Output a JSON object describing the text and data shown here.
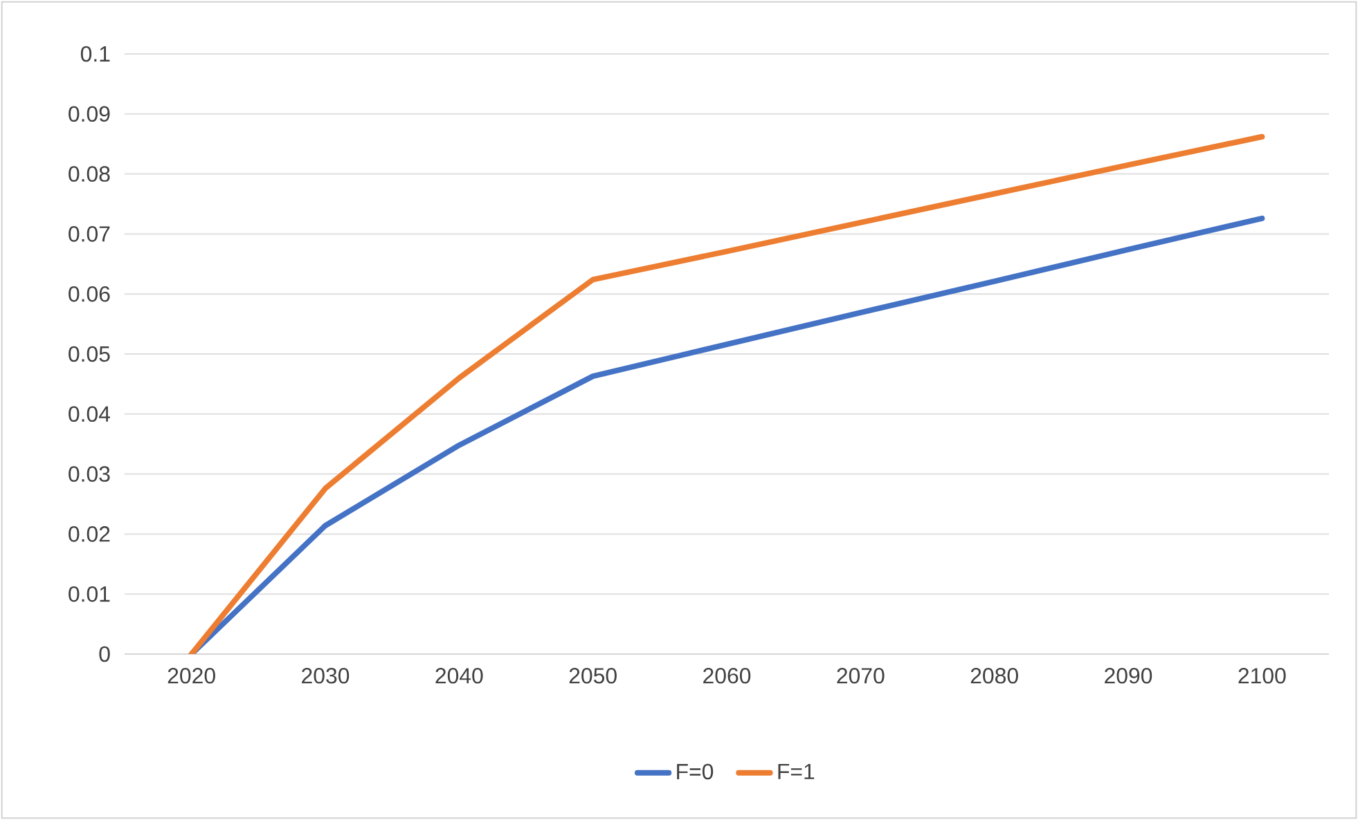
{
  "chart_data": {
    "type": "line",
    "categories": [
      "2020",
      "2030",
      "2040",
      "2050",
      "2060",
      "2070",
      "2080",
      "2090",
      "2100"
    ],
    "series": [
      {
        "name": "F=0",
        "color": "#4472c4",
        "values": [
          0,
          0.0214,
          0.0348,
          0.0463,
          0.0516,
          0.0569,
          0.0621,
          0.0674,
          0.0726
        ]
      },
      {
        "name": "F=1",
        "color": "#ed7d31",
        "values": [
          0,
          0.0276,
          0.046,
          0.0624,
          0.0671,
          0.0719,
          0.0767,
          0.0815,
          0.0862
        ]
      }
    ],
    "ylim": [
      0,
      0.1
    ],
    "yticks": [
      0,
      0.01,
      0.02,
      0.03,
      0.04,
      0.05,
      0.06,
      0.07,
      0.08,
      0.09,
      0.1
    ],
    "grid": "y",
    "legend": "bottom",
    "marker": "none",
    "line_style": "solid"
  }
}
